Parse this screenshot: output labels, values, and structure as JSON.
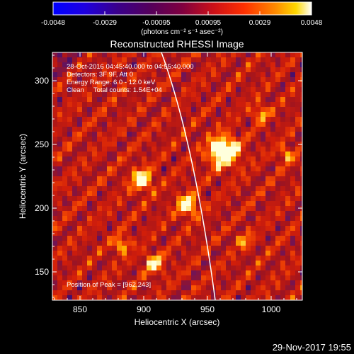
{
  "colorbar": {
    "ticks": [
      "-0.0048",
      "-0.0029",
      "-0.00095",
      "0.00095",
      "0.0029",
      "0.0048"
    ],
    "units_label": "(photons cm⁻² s⁻¹ asec⁻²)"
  },
  "plot": {
    "title": "Reconstructed RHESSI Image",
    "info_lines": [
      "28-Oct-2016 04:45:40.000 to 04:55:40.000",
      "Detectors: 3F 9F, Att 0",
      "Energy Range: 6.0 - 12.0 keV",
      "Clean     Total counts: 1.54E+04"
    ],
    "peak_label": "Position of Peak = [962,243]",
    "xlabel": "Heliocentric X (arcsec)",
    "ylabel": "Heliocentric Y (arcsec)",
    "x_ticks": [
      "850",
      "900",
      "950",
      "1000"
    ],
    "y_ticks": [
      "150",
      "200",
      "250",
      "300"
    ]
  },
  "timestamp": "29-Nov-2017 19:55",
  "colors": {
    "background": "#000000",
    "axes": "#ffffff",
    "limb_curve": "#ffffff"
  }
}
